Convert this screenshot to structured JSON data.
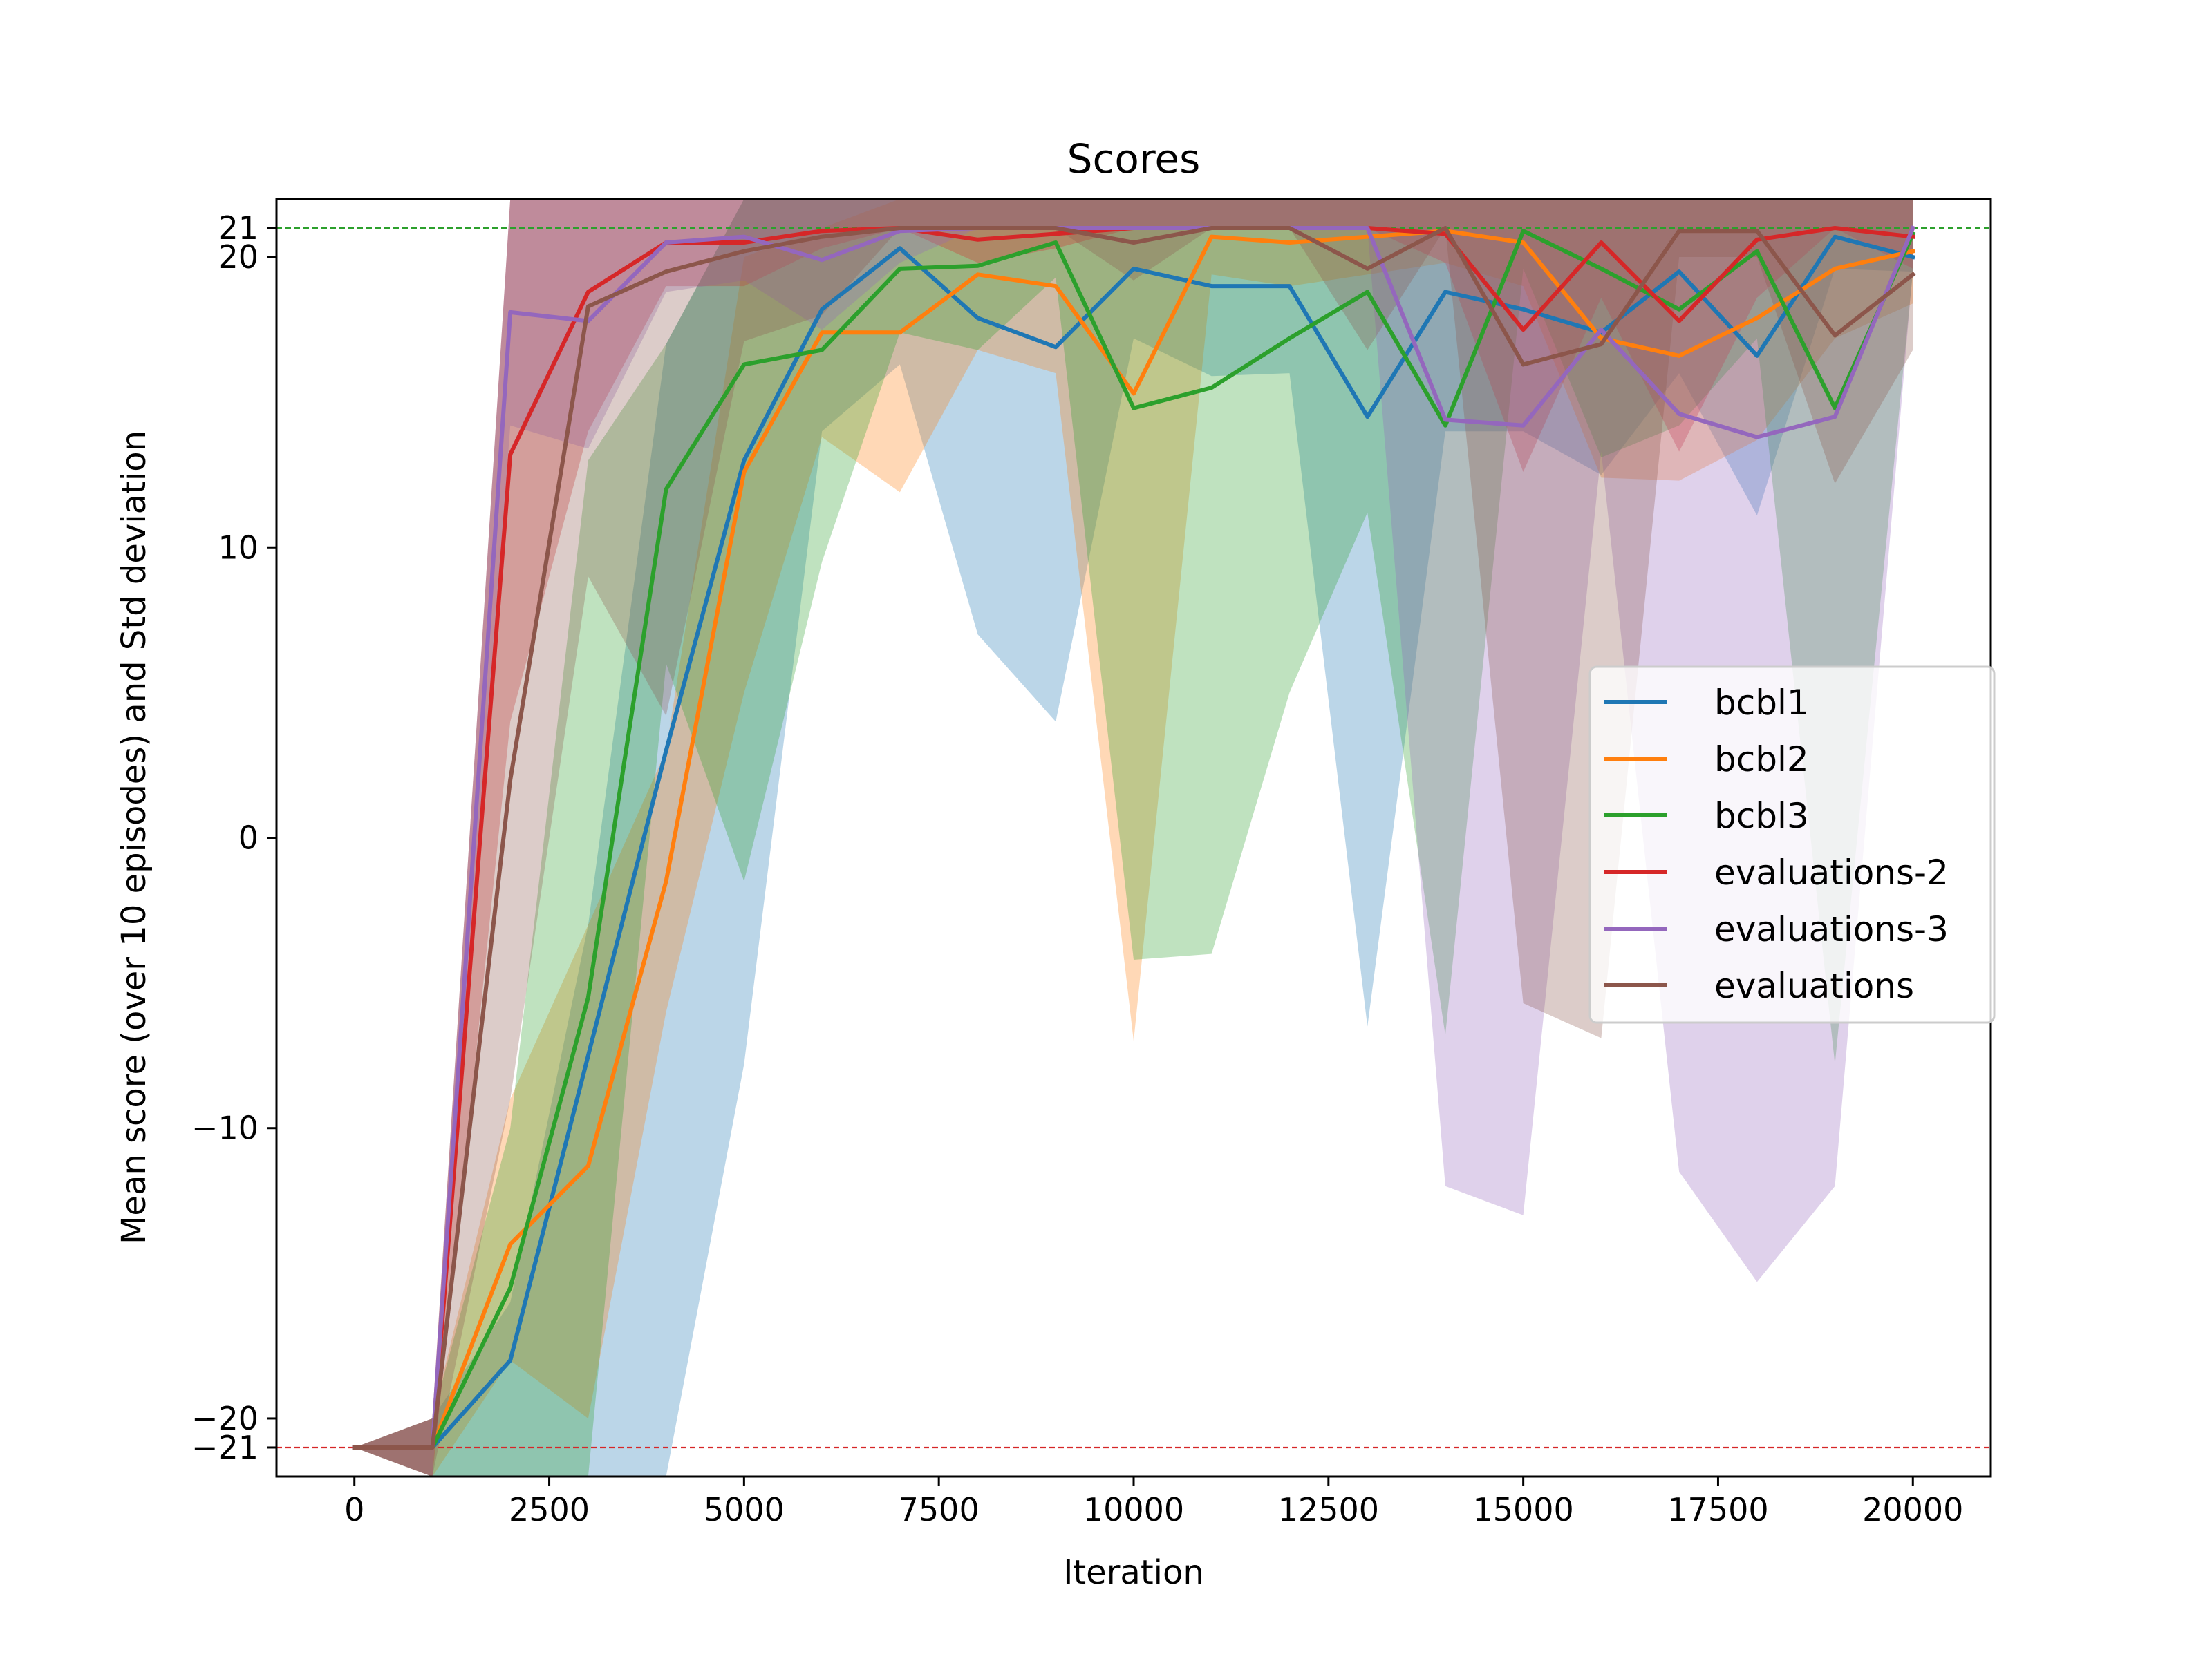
{
  "chart_data": {
    "type": "line",
    "title": "Scores",
    "xlabel": "Iteration",
    "ylabel": "Mean score (over 10 episodes) and Std deviation",
    "xlim": [
      -1000,
      21000
    ],
    "ylim": [
      -22,
      22
    ],
    "x_ticks": [
      0,
      2500,
      5000,
      7500,
      10000,
      12500,
      15000,
      17500,
      20000
    ],
    "x_tick_labels": [
      "0",
      "2500",
      "5000",
      "7500",
      "10000",
      "12500",
      "15000",
      "17500",
      "20000"
    ],
    "y_ticks": [
      -21,
      -20,
      -10,
      0,
      10,
      20,
      21
    ],
    "y_tick_labels": [
      "−21",
      "−20",
      "−10",
      "0",
      "10",
      "20",
      "21"
    ],
    "reference_lines": [
      {
        "y": 21,
        "color": "#2ca02c",
        "style": "dashed"
      },
      {
        "y": -21,
        "color": "#d62728",
        "style": "dashed"
      }
    ],
    "legend_position": "center-right",
    "grid": false,
    "x": [
      0,
      1000,
      2000,
      3000,
      4000,
      5000,
      6000,
      7000,
      8000,
      9000,
      10000,
      11000,
      12000,
      13000,
      14000,
      15000,
      16000,
      17000,
      18000,
      19000,
      20000
    ],
    "series": [
      {
        "name": "bcbl1",
        "color": "#1f77b4",
        "values": [
          -21,
          -21,
          -18,
          -7.5,
          3,
          13,
          18.2,
          20.3,
          17.9,
          16.9,
          19.6,
          19.0,
          19.0,
          14.5,
          18.8,
          18.2,
          17.4,
          19.5,
          16.6,
          20.7,
          20.0
        ],
        "upper": [
          -21,
          -20,
          -16,
          -3,
          17,
          22,
          22,
          22,
          22,
          22,
          22,
          22,
          22,
          22,
          22,
          22,
          22,
          22,
          22,
          22,
          22
        ],
        "lower": [
          -21,
          -22,
          -22,
          -22,
          -22,
          -7.8,
          14,
          16.3,
          7,
          4,
          17.2,
          15.9,
          16,
          -6.5,
          14,
          14,
          12.5,
          16,
          11.1,
          19.6,
          19.5
        ]
      },
      {
        "name": "bcbl2",
        "color": "#ff7f0e",
        "values": [
          -21,
          -21,
          -14,
          -11.3,
          -1.5,
          12.6,
          17.4,
          17.4,
          19.4,
          19.0,
          15.3,
          20.7,
          20.5,
          20.7,
          20.9,
          20.5,
          17.2,
          16.6,
          17.9,
          19.6,
          20.2
        ],
        "upper": [
          -21,
          -20,
          -9,
          -3,
          3,
          20,
          21,
          22,
          22,
          22,
          22,
          22,
          22,
          22,
          22,
          22,
          22,
          22,
          22,
          22,
          22
        ],
        "lower": [
          -21,
          -22,
          -18,
          -20,
          -6,
          5,
          13.8,
          11.9,
          16.8,
          16.0,
          -7.0,
          19.4,
          19.0,
          19.4,
          19.8,
          19.0,
          12.4,
          12.3,
          13.7,
          17.2,
          18.4
        ]
      },
      {
        "name": "bcbl3",
        "color": "#2ca02c",
        "values": [
          -21,
          -21,
          -15.5,
          -5.5,
          12,
          16.3,
          16.8,
          19.6,
          19.7,
          20.5,
          14.8,
          15.5,
          17.2,
          18.8,
          14.2,
          20.9,
          19.6,
          18.2,
          20.2,
          14.8,
          20.8
        ],
        "upper": [
          -21,
          -20,
          -10,
          13,
          17,
          22,
          22,
          22,
          22,
          22,
          22,
          22,
          22,
          22,
          22,
          22,
          22,
          22,
          22,
          22,
          22
        ],
        "lower": [
          -21,
          -22,
          -22,
          -22,
          6,
          -1.5,
          9.5,
          17.4,
          16.8,
          19.3,
          -4.2,
          -4.0,
          5.0,
          11.2,
          -6.8,
          19.6,
          13.1,
          14.2,
          17.2,
          -7.8,
          19.5
        ]
      },
      {
        "name": "evaluations-2",
        "color": "#d62728",
        "values": [
          -21,
          -21,
          13.2,
          18.8,
          20.5,
          20.5,
          20.9,
          21,
          20.6,
          20.8,
          21,
          21,
          21,
          21,
          20.8,
          17.5,
          20.5,
          17.8,
          20.6,
          21,
          20.7
        ],
        "upper": [
          -21,
          -20,
          22,
          22,
          22,
          22,
          22,
          22,
          22,
          22,
          22,
          22,
          22,
          22,
          22,
          22,
          22,
          22,
          22,
          22,
          22
        ],
        "lower": [
          -21,
          -22,
          4,
          14.0,
          19.0,
          19.0,
          20.3,
          21,
          19.8,
          20.3,
          21,
          21,
          21,
          21,
          19.8,
          12.6,
          18.6,
          13.3,
          18.6,
          21,
          19.6
        ]
      },
      {
        "name": "evaluations-3",
        "color": "#9467bd",
        "values": [
          -21,
          -21,
          18.1,
          17.8,
          20.5,
          20.7,
          19.9,
          20.9,
          21,
          21,
          21,
          21,
          21,
          21,
          14.4,
          14.2,
          17.5,
          14.6,
          13.8,
          14.5,
          21
        ],
        "upper": [
          -21,
          -20,
          22,
          22,
          22,
          22,
          22,
          22,
          22,
          22,
          22,
          22,
          22,
          22,
          22,
          22,
          22,
          22,
          22,
          22,
          22
        ],
        "lower": [
          -21,
          -22,
          14.2,
          13.4,
          18.8,
          19.2,
          17.5,
          19.8,
          21,
          21,
          21,
          21,
          21,
          21,
          -12.0,
          -13.0,
          13.3,
          -11.5,
          -15.3,
          -12.0,
          19.6
        ]
      },
      {
        "name": "evaluations",
        "color": "#8c564b",
        "values": [
          -21,
          -21,
          2,
          18.3,
          19.5,
          20.2,
          20.7,
          21,
          21,
          21,
          20.5,
          21,
          21,
          19.6,
          21,
          16.3,
          17.0,
          20.9,
          20.9,
          17.3,
          19.4
        ],
        "upper": [
          -21,
          -20,
          22,
          22,
          22,
          22,
          22,
          22,
          22,
          22,
          22,
          22,
          22,
          22,
          22,
          22,
          22,
          22,
          22,
          22,
          22
        ],
        "lower": [
          -21,
          -22,
          -9,
          9.0,
          4.2,
          17.1,
          18.0,
          21,
          21,
          21,
          19.2,
          21,
          21,
          16.8,
          21,
          -5.7,
          -6.9,
          20.0,
          20.0,
          12.2,
          16.8
        ]
      }
    ]
  }
}
